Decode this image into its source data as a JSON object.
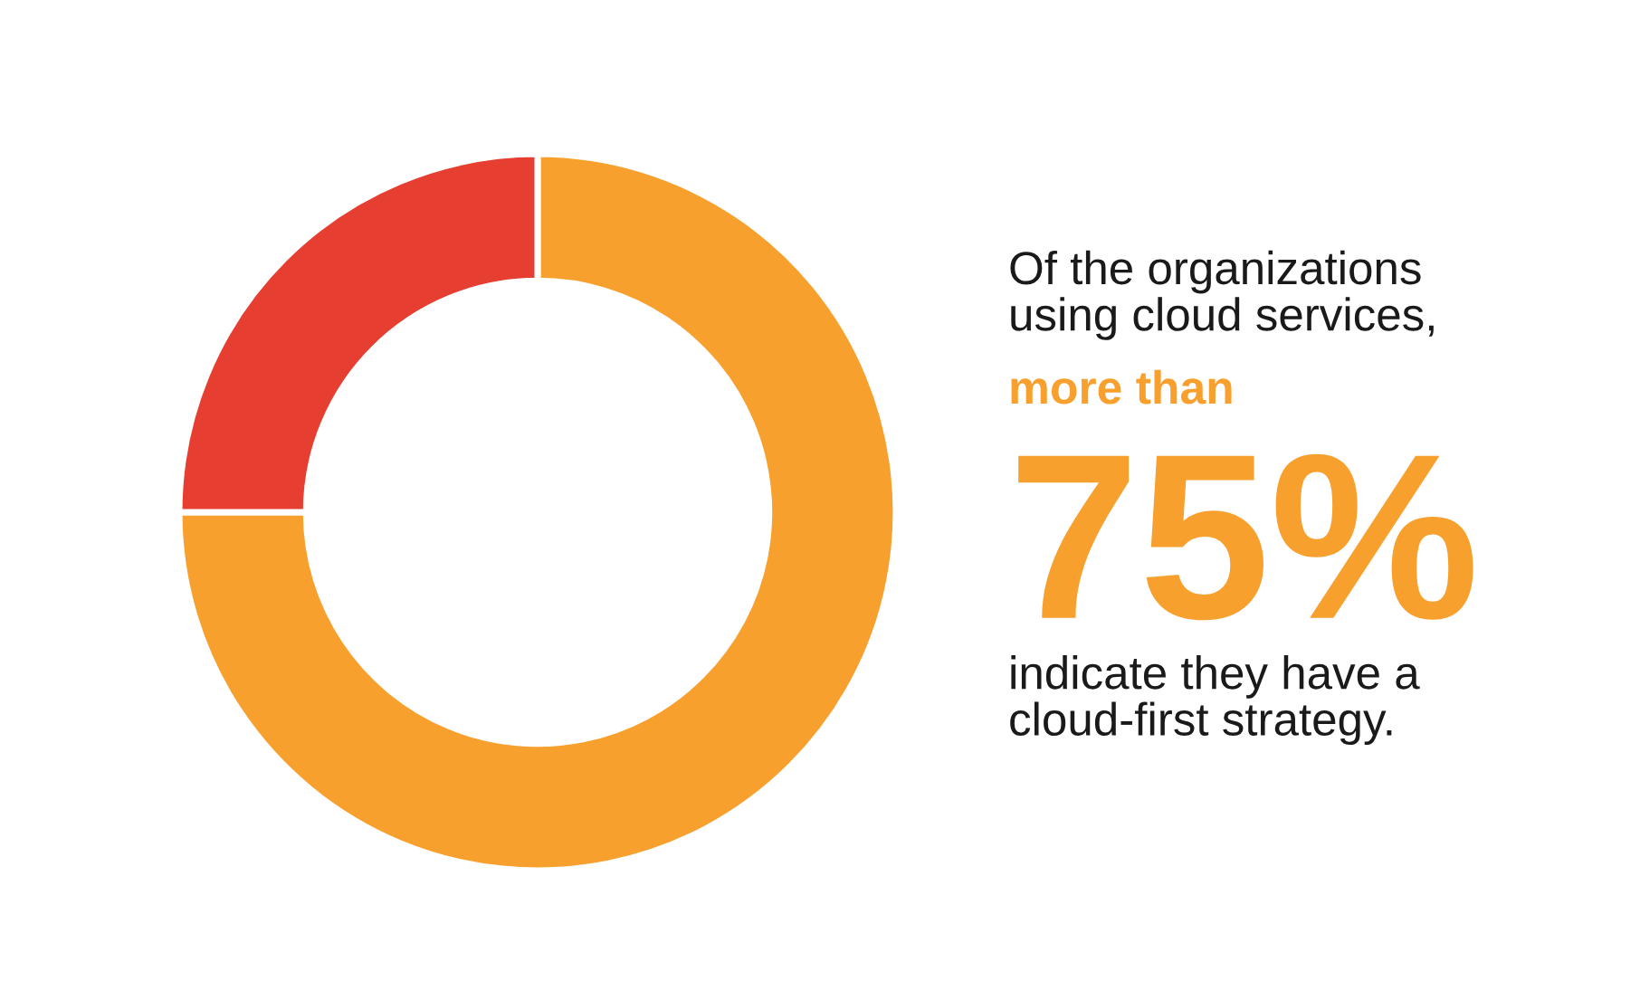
{
  "chart_data": {
    "type": "donut",
    "categories": [
      null,
      null
    ],
    "values": [
      75,
      25
    ],
    "colors": [
      "#f8a02e",
      "#e63e30"
    ],
    "annotations": [
      "Of the organizations\nusing cloud services,",
      "more than",
      "75%",
      "indicate they have a\ncloud-first strategy."
    ]
  }
}
